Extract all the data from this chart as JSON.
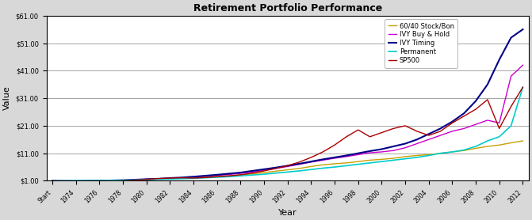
{
  "title": "Retirement Portfolio Performance",
  "xlabel": "Year",
  "ylabel": "Value",
  "x_labels": [
    "Start",
    "1974",
    "1976",
    "1978",
    "1980",
    "1982",
    "1984",
    "1986",
    "1988",
    "1990",
    "1992",
    "1994",
    "1996",
    "1998",
    "2000",
    "2002",
    "2004",
    "2006",
    "2008",
    "2010",
    "2012"
  ],
  "n_points": 41,
  "ylim": [
    1.0,
    61.0
  ],
  "yticks": [
    1.0,
    11.0,
    21.0,
    31.0,
    41.0,
    51.0,
    61.0
  ],
  "series": {
    "60/40 Stock/Bon": {
      "color": "#C8A000",
      "values": [
        1.0,
        0.85,
        0.9,
        1.0,
        1.05,
        1.1,
        1.15,
        1.3,
        1.5,
        1.65,
        1.8,
        2.0,
        2.2,
        2.4,
        2.6,
        2.8,
        3.1,
        3.5,
        4.0,
        4.5,
        5.0,
        5.5,
        6.2,
        6.8,
        7.2,
        7.5,
        8.0,
        8.5,
        8.8,
        9.2,
        9.8,
        10.2,
        10.5,
        11.0,
        11.5,
        12.0,
        12.8,
        13.5,
        14.0,
        14.8,
        15.5
      ]
    },
    "IVY Buy & Hold": {
      "color": "#CC00CC",
      "values": [
        1.0,
        0.85,
        0.9,
        1.0,
        1.05,
        1.1,
        1.2,
        1.35,
        1.55,
        1.7,
        1.9,
        2.1,
        2.4,
        2.7,
        3.0,
        3.3,
        3.7,
        4.2,
        4.8,
        5.5,
        6.2,
        7.0,
        7.8,
        8.5,
        9.2,
        9.8,
        10.5,
        11.2,
        11.5,
        12.0,
        13.0,
        14.5,
        16.0,
        17.5,
        19.0,
        20.0,
        21.5,
        23.0,
        22.0,
        39.0,
        43.0
      ]
    },
    "IVY Timing": {
      "color": "#000088",
      "values": [
        1.0,
        0.95,
        0.95,
        1.0,
        1.05,
        1.15,
        1.25,
        1.4,
        1.6,
        1.75,
        2.0,
        2.2,
        2.5,
        2.85,
        3.2,
        3.6,
        4.0,
        4.6,
        5.2,
        5.8,
        6.5,
        7.2,
        8.0,
        8.8,
        9.5,
        10.2,
        11.0,
        11.8,
        12.5,
        13.5,
        14.5,
        16.0,
        18.0,
        20.0,
        22.5,
        25.5,
        30.0,
        36.0,
        45.0,
        53.0,
        56.0
      ]
    },
    "Permanent": {
      "color": "#00CCCC",
      "values": [
        1.0,
        1.0,
        1.05,
        1.1,
        1.1,
        1.15,
        1.2,
        1.3,
        1.45,
        1.55,
        1.65,
        1.75,
        1.9,
        2.1,
        2.3,
        2.5,
        2.8,
        3.1,
        3.4,
        3.8,
        4.2,
        4.6,
        5.1,
        5.6,
        6.0,
        6.5,
        7.0,
        7.5,
        8.0,
        8.5,
        9.0,
        9.5,
        10.2,
        11.0,
        11.5,
        12.2,
        13.5,
        15.5,
        17.0,
        21.0,
        35.0
      ]
    },
    "SP500": {
      "color": "#AA0000",
      "values": [
        1.0,
        0.75,
        0.7,
        0.8,
        0.85,
        0.9,
        1.0,
        1.2,
        1.5,
        1.8,
        2.0,
        2.1,
        2.0,
        2.2,
        2.5,
        2.8,
        3.2,
        3.8,
        4.6,
        5.5,
        6.5,
        7.8,
        9.5,
        11.5,
        14.0,
        17.0,
        19.5,
        17.0,
        18.5,
        20.0,
        21.0,
        19.0,
        17.5,
        19.0,
        22.0,
        24.5,
        27.0,
        30.5,
        20.0,
        28.0,
        35.0
      ]
    }
  },
  "background_color": "#FFFFFF",
  "plot_background": "#FFFFFF",
  "grid_color": "#808080",
  "outer_bg": "#D8D8D8"
}
